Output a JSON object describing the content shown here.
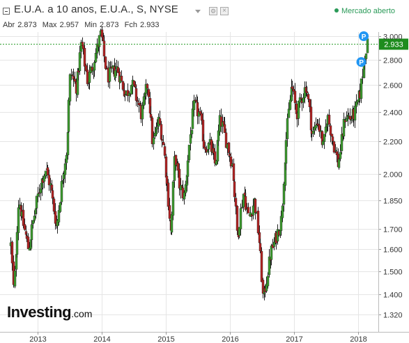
{
  "header": {
    "title": "E.U.A. a 10 anos, E.U.A., S, NYSE",
    "market_status": "Mercado aberto",
    "ohlc": {
      "open_label": "Abr",
      "open": "2.873",
      "high_label": "Max",
      "high": "2.957",
      "low_label": "Min",
      "low": "2.873",
      "close_label": "Fch",
      "close": "2.933"
    }
  },
  "logo": {
    "main": "Investing",
    "suffix": ".com"
  },
  "icons": {
    "collapse": "collapse-icon",
    "dropdown": "chevron-down-icon",
    "settings": "gear-icon",
    "close": "close-icon",
    "event_marker": "p-marker-icon"
  },
  "colors": {
    "up": "#3c9a2e",
    "down": "#b22222",
    "last_price_line": "#2e9e2e",
    "last_price_badge": "#1e8c1e",
    "marker": "#2196f3",
    "grid": "#e5e5e5"
  },
  "chart_data": {
    "type": "candlestick",
    "y_scale": "log",
    "y_ticks": [
      1.32,
      1.4,
      1.5,
      1.6,
      1.7,
      1.85,
      2.0,
      2.2,
      2.4,
      2.6,
      2.8,
      3.0
    ],
    "y_tick_labels": [
      "1.320",
      "1.400",
      "1.500",
      "1.600",
      "1.700",
      "1.850",
      "2.000",
      "2.200",
      "2.400",
      "2.600",
      "2.800",
      "3.000"
    ],
    "x_labels": [
      "2013",
      "2014",
      "2015",
      "2016",
      "2017",
      "2018"
    ],
    "last_price": 2.933,
    "last_price_label": "2.933",
    "markers": [
      {
        "label": "P",
        "date": "2018-02-02",
        "value": 3.0
      },
      {
        "label": "P",
        "date": "2018-01-19",
        "value": 2.78
      }
    ],
    "keypoints": [
      [
        "2012-08-01",
        1.62
      ],
      [
        "2012-08-17",
        1.4
      ],
      [
        "2012-09-14",
        1.86
      ],
      [
        "2012-10-05",
        1.74
      ],
      [
        "2012-11-09",
        1.6
      ],
      [
        "2012-12-14",
        1.78
      ],
      [
        "2013-01-18",
        1.95
      ],
      [
        "2013-02-15",
        2.03
      ],
      [
        "2013-03-15",
        1.92
      ],
      [
        "2013-04-19",
        1.7
      ],
      [
        "2013-05-17",
        1.95
      ],
      [
        "2013-06-14",
        2.15
      ],
      [
        "2013-07-05",
        2.7
      ],
      [
        "2013-08-09",
        2.58
      ],
      [
        "2013-09-06",
        2.95
      ],
      [
        "2013-10-11",
        2.62
      ],
      [
        "2013-11-08",
        2.75
      ],
      [
        "2013-12-27",
        3.02
      ],
      [
        "2014-01-31",
        2.66
      ],
      [
        "2014-03-28",
        2.73
      ],
      [
        "2014-05-16",
        2.52
      ],
      [
        "2014-06-20",
        2.61
      ],
      [
        "2014-08-15",
        2.38
      ],
      [
        "2014-09-19",
        2.61
      ],
      [
        "2014-10-17",
        2.18
      ],
      [
        "2014-11-21",
        2.34
      ],
      [
        "2014-12-19",
        2.16
      ],
      [
        "2015-01-30",
        1.66
      ],
      [
        "2015-02-20",
        2.12
      ],
      [
        "2015-03-20",
        1.92
      ],
      [
        "2015-04-17",
        1.87
      ],
      [
        "2015-05-15",
        2.2
      ],
      [
        "2015-06-12",
        2.45
      ],
      [
        "2015-07-10",
        2.38
      ],
      [
        "2015-08-07",
        2.17
      ],
      [
        "2015-09-11",
        2.17
      ],
      [
        "2015-10-09",
        2.05
      ],
      [
        "2015-11-06",
        2.35
      ],
      [
        "2015-12-11",
        2.2
      ],
      [
        "2016-01-15",
        2.05
      ],
      [
        "2016-02-12",
        1.66
      ],
      [
        "2016-03-18",
        1.9
      ],
      [
        "2016-04-15",
        1.75
      ],
      [
        "2016-05-20",
        1.85
      ],
      [
        "2016-06-17",
        1.62
      ],
      [
        "2016-07-08",
        1.37
      ],
      [
        "2016-08-19",
        1.58
      ],
      [
        "2016-09-16",
        1.65
      ],
      [
        "2016-10-21",
        1.75
      ],
      [
        "2016-11-11",
        2.15
      ],
      [
        "2016-12-16",
        2.6
      ],
      [
        "2017-01-13",
        2.38
      ],
      [
        "2017-03-10",
        2.6
      ],
      [
        "2017-04-14",
        2.23
      ],
      [
        "2017-05-12",
        2.35
      ],
      [
        "2017-06-16",
        2.15
      ],
      [
        "2017-07-07",
        2.38
      ],
      [
        "2017-09-08",
        2.05
      ],
      [
        "2017-10-20",
        2.38
      ],
      [
        "2017-11-17",
        2.35
      ],
      [
        "2017-12-15",
        2.4
      ],
      [
        "2018-01-12",
        2.55
      ],
      [
        "2018-02-09",
        2.88
      ],
      [
        "2018-02-23",
        2.93
      ]
    ]
  }
}
